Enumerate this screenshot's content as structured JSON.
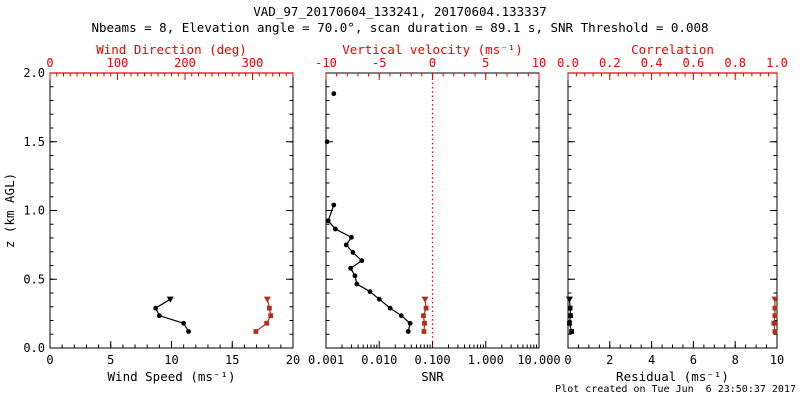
{
  "figure": {
    "title": "VAD_97_20170604_133241, 20170604.133337",
    "subtitle": "Nbeams = 8, Elevation angle = 70.0°, scan duration = 89.1 s, SNR Threshold = 0.008",
    "footer": "Plot created on Tue Jun  6 23:50:37 2017",
    "colors": {
      "background": "#FFFFFF",
      "black": "#000000",
      "axis_red": "#EE0000",
      "data_red": "#B03020"
    }
  },
  "chart_data": [
    {
      "name": "wind-panel",
      "type": "scatter",
      "y_axis": {
        "label": "z (km AGL)",
        "range": [
          0,
          2
        ],
        "minor_step": 0.1,
        "show_labels": true,
        "ticks": [
          {
            "v": 0,
            "l": "0.0"
          },
          {
            "v": 0.5,
            "l": "0.5"
          },
          {
            "v": 1,
            "l": "1.0"
          },
          {
            "v": 1.5,
            "l": "1.5"
          },
          {
            "v": 2,
            "l": "2.0"
          }
        ]
      },
      "bottom_axis": {
        "label": "Wind Speed (ms⁻¹)",
        "scale": "linear",
        "range": [
          0,
          20
        ],
        "minor_step": 1,
        "ticks": [
          {
            "v": 0,
            "l": "0"
          },
          {
            "v": 5,
            "l": "5"
          },
          {
            "v": 10,
            "l": "10"
          },
          {
            "v": 15,
            "l": "15"
          },
          {
            "v": 20,
            "l": "20"
          }
        ]
      },
      "top_axis": {
        "label": "Wind Direction (deg)",
        "scale": "linear",
        "range": [
          0,
          360
        ],
        "minor_step": 10,
        "red_line": true,
        "ticks": [
          {
            "v": 0,
            "l": "0"
          },
          {
            "v": 100,
            "l": "100"
          },
          {
            "v": 200,
            "l": "200"
          },
          {
            "v": 300,
            "l": "300"
          }
        ]
      },
      "series": [
        {
          "name": "wind-speed",
          "axis": "bottom",
          "color": "#000000",
          "line": true,
          "marker": "circle",
          "first_marker": "triangle",
          "points": [
            [
              9.9,
              0.355
            ],
            [
              8.7,
              0.29
            ],
            [
              9.0,
              0.235
            ],
            [
              11.0,
              0.18
            ],
            [
              11.4,
              0.12
            ]
          ]
        },
        {
          "name": "wind-direction",
          "axis": "top",
          "color": "#B03020",
          "line": true,
          "marker": "square",
          "first_marker": "triangle",
          "points": [
            [
              322,
              0.355
            ],
            [
              325,
              0.29
            ],
            [
              327,
              0.235
            ],
            [
              321,
              0.18
            ],
            [
              305,
              0.12
            ]
          ]
        }
      ]
    },
    {
      "name": "snr-panel",
      "type": "scatter",
      "y_axis": {
        "label": "",
        "range": [
          0,
          2
        ],
        "minor_step": 0.1,
        "show_labels": false,
        "ticks": [
          {
            "v": 0,
            "l": "0.0"
          },
          {
            "v": 0.5,
            "l": "0.5"
          },
          {
            "v": 1,
            "l": "1.0"
          },
          {
            "v": 1.5,
            "l": "1.5"
          },
          {
            "v": 2,
            "l": "2.0"
          }
        ]
      },
      "bottom_axis": {
        "label": "SNR",
        "scale": "log",
        "range": [
          0.001,
          10
        ],
        "ticks": [
          {
            "v": 0.001,
            "l": "0.001"
          },
          {
            "v": 0.01,
            "l": "0.010"
          },
          {
            "v": 0.1,
            "l": "0.100"
          },
          {
            "v": 1,
            "l": "1.000"
          },
          {
            "v": 10,
            "l": "10.000"
          }
        ]
      },
      "top_axis": {
        "label": "Vertical velocity (ms⁻¹)",
        "scale": "linear",
        "range": [
          -10,
          10
        ],
        "minor_step": 1,
        "red_line": false,
        "ticks": [
          {
            "v": -10,
            "l": "-10"
          },
          {
            "v": -5,
            "l": "-5"
          },
          {
            "v": 0,
            "l": "0"
          },
          {
            "v": 5,
            "l": "5"
          },
          {
            "v": 10,
            "l": "10"
          }
        ]
      },
      "reference_line": {
        "axis": "top",
        "value": 0,
        "style": "dotted",
        "color": "#EE0000"
      },
      "series": [
        {
          "name": "snr-upper-gates",
          "axis": "bottom",
          "color": "#000000",
          "line": false,
          "marker": "circle",
          "points": [
            [
              0.0014,
              1.85
            ],
            [
              0.00105,
              1.5
            ]
          ]
        },
        {
          "name": "snr-profile",
          "axis": "bottom",
          "color": "#000000",
          "line": true,
          "marker": "circle",
          "points": [
            [
              0.0014,
              1.04
            ],
            [
              0.0011,
              0.925
            ],
            [
              0.0015,
              0.865
            ],
            [
              0.003,
              0.805
            ],
            [
              0.0024,
              0.75
            ],
            [
              0.0032,
              0.695
            ],
            [
              0.0047,
              0.635
            ],
            [
              0.0029,
              0.58
            ],
            [
              0.0035,
              0.525
            ],
            [
              0.0038,
              0.465
            ],
            [
              0.0067,
              0.41
            ],
            [
              0.01,
              0.355
            ],
            [
              0.016,
              0.29
            ],
            [
              0.026,
              0.235
            ],
            [
              0.038,
              0.18
            ],
            [
              0.035,
              0.12
            ]
          ]
        },
        {
          "name": "vertical-velocity",
          "axis": "top",
          "color": "#B03020",
          "line": true,
          "marker": "square",
          "first_marker": "triangle",
          "points": [
            [
              -0.7,
              0.355
            ],
            [
              -0.6,
              0.29
            ],
            [
              -0.85,
              0.235
            ],
            [
              -0.75,
              0.18
            ],
            [
              -0.8,
              0.12
            ]
          ]
        }
      ]
    },
    {
      "name": "residual-panel",
      "type": "scatter",
      "y_axis": {
        "label": "",
        "range": [
          0,
          2
        ],
        "minor_step": 0.1,
        "show_labels": false,
        "ticks": [
          {
            "v": 0,
            "l": "0.0"
          },
          {
            "v": 0.5,
            "l": "0.5"
          },
          {
            "v": 1,
            "l": "1.0"
          },
          {
            "v": 1.5,
            "l": "1.5"
          },
          {
            "v": 2,
            "l": "2.0"
          }
        ]
      },
      "bottom_axis": {
        "label": "Residual (ms⁻¹)",
        "scale": "linear",
        "range": [
          0,
          10
        ],
        "minor_step": 0.5,
        "ticks": [
          {
            "v": 0,
            "l": "0"
          },
          {
            "v": 2,
            "l": "2"
          },
          {
            "v": 4,
            "l": "4"
          },
          {
            "v": 6,
            "l": "6"
          },
          {
            "v": 8,
            "l": "8"
          },
          {
            "v": 10,
            "l": "10"
          }
        ]
      },
      "top_axis": {
        "label": "Correlation",
        "scale": "linear",
        "range": [
          0,
          1
        ],
        "minor_step": 0.04,
        "red_line": true,
        "ticks": [
          {
            "v": 0,
            "l": "0.0"
          },
          {
            "v": 0.2,
            "l": "0.2"
          },
          {
            "v": 0.4,
            "l": "0.4"
          },
          {
            "v": 0.6,
            "l": "0.6"
          },
          {
            "v": 0.8,
            "l": "0.8"
          },
          {
            "v": 1,
            "l": "1.0"
          }
        ]
      },
      "series": [
        {
          "name": "residual",
          "axis": "bottom",
          "color": "#000000",
          "line": true,
          "marker": "square",
          "first_marker": "triangle",
          "points": [
            [
              0.07,
              0.355
            ],
            [
              0.1,
              0.29
            ],
            [
              0.12,
              0.235
            ],
            [
              0.07,
              0.18
            ],
            [
              0.17,
              0.12
            ]
          ]
        },
        {
          "name": "correlation",
          "axis": "top",
          "color": "#B03020",
          "line": true,
          "marker": "square",
          "first_marker": "triangle",
          "points": [
            [
              0.99,
              0.355
            ],
            [
              0.99,
              0.29
            ],
            [
              0.99,
              0.235
            ],
            [
              0.985,
              0.18
            ],
            [
              0.99,
              0.12
            ]
          ]
        }
      ]
    }
  ]
}
